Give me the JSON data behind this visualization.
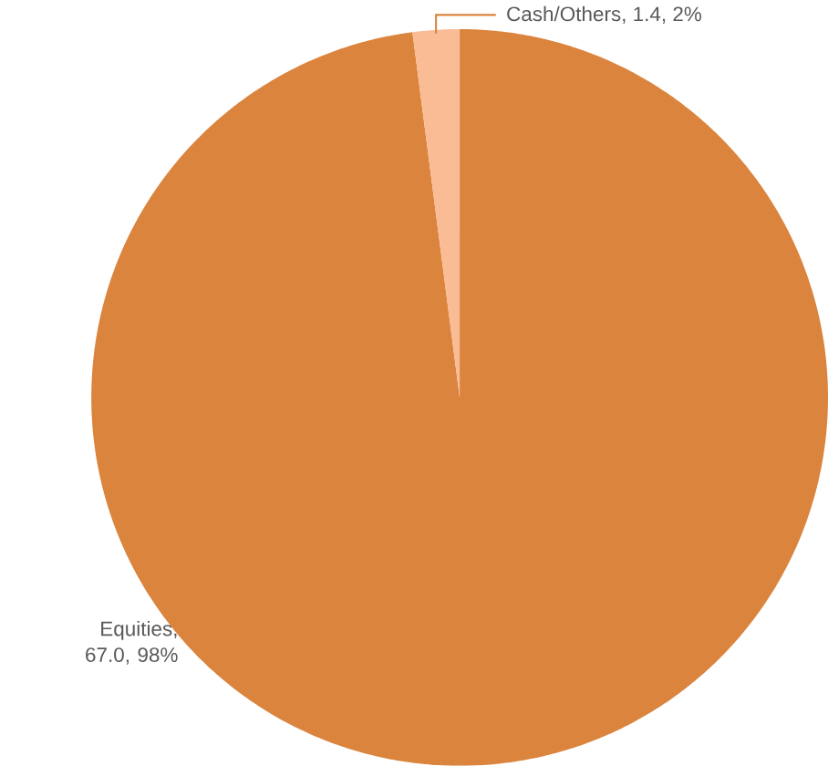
{
  "chart_data": {
    "type": "pie",
    "categories": [
      "Equities",
      "Cash/Others"
    ],
    "values": [
      67.0,
      1.4
    ],
    "colors": [
      "#db843d",
      "#f9bc95"
    ],
    "value_labels": [
      ", 67.0, 98%",
      ", 1.4, 2%"
    ]
  }
}
